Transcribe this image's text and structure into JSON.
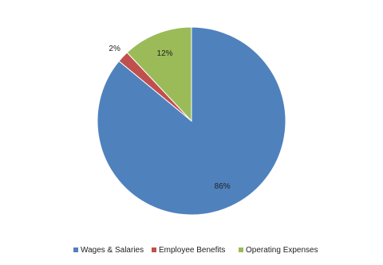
{
  "chart_data": {
    "type": "pie",
    "categories": [
      "Wages & Salaries",
      "Employee Benefits",
      "Operating Expenses"
    ],
    "values": [
      86,
      2,
      12
    ],
    "value_labels": [
      "86%",
      "2%",
      "12%"
    ],
    "colors": [
      "#4f81bd",
      "#c0504d",
      "#9bbb59"
    ],
    "legend": "bottom"
  }
}
